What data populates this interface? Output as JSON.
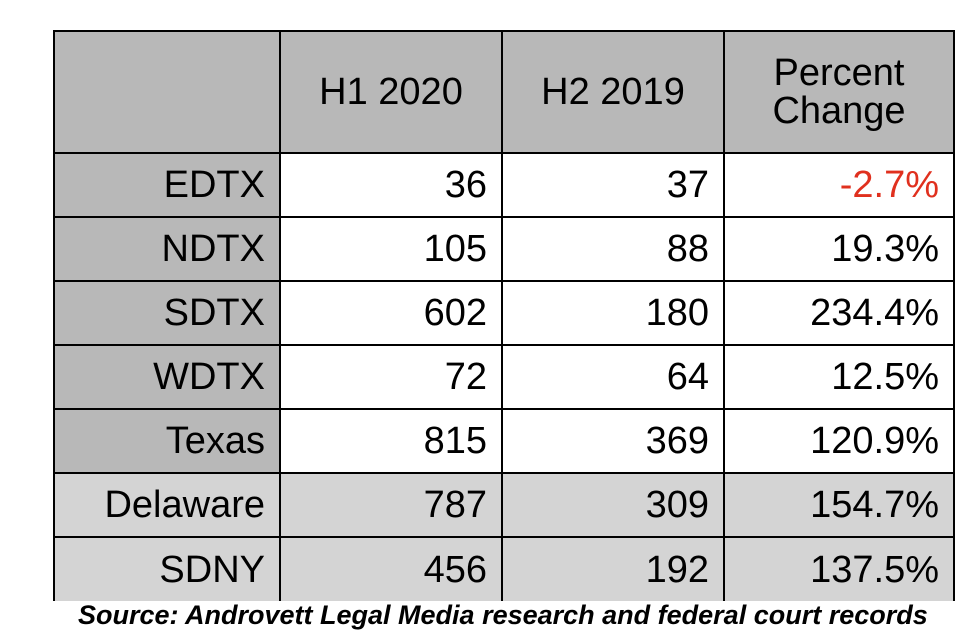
{
  "table": {
    "headers": [
      "",
      "H1 2020",
      "H2 2019",
      "Percent Change"
    ],
    "header_pct_line1": "Percent",
    "header_pct_line2": "Change",
    "rows": [
      {
        "label": "EDTX",
        "h1_2020": "36",
        "h2_2019": "37",
        "pct": "-2.7%"
      },
      {
        "label": "NDTX",
        "h1_2020": "105",
        "h2_2019": "88",
        "pct": "19.3%"
      },
      {
        "label": "SDTX",
        "h1_2020": "602",
        "h2_2019": "180",
        "pct": "234.4%"
      },
      {
        "label": "WDTX",
        "h1_2020": "72",
        "h2_2019": "64",
        "pct": "12.5%"
      },
      {
        "label": "Texas",
        "h1_2020": "815",
        "h2_2019": "369",
        "pct": "120.9%"
      },
      {
        "label": "Delaware",
        "h1_2020": "787",
        "h2_2019": "309",
        "pct": "154.7%"
      },
      {
        "label": "SDNY",
        "h1_2020": "456",
        "h2_2019": "192",
        "pct": "137.5%"
      }
    ]
  },
  "colors": {
    "header_fill": "#b8b8b8",
    "lower_rows_fill": "#d4d4d4",
    "negative_text": "#e0301e"
  },
  "source": "Source: Androvett Legal Media research and federal court records"
}
